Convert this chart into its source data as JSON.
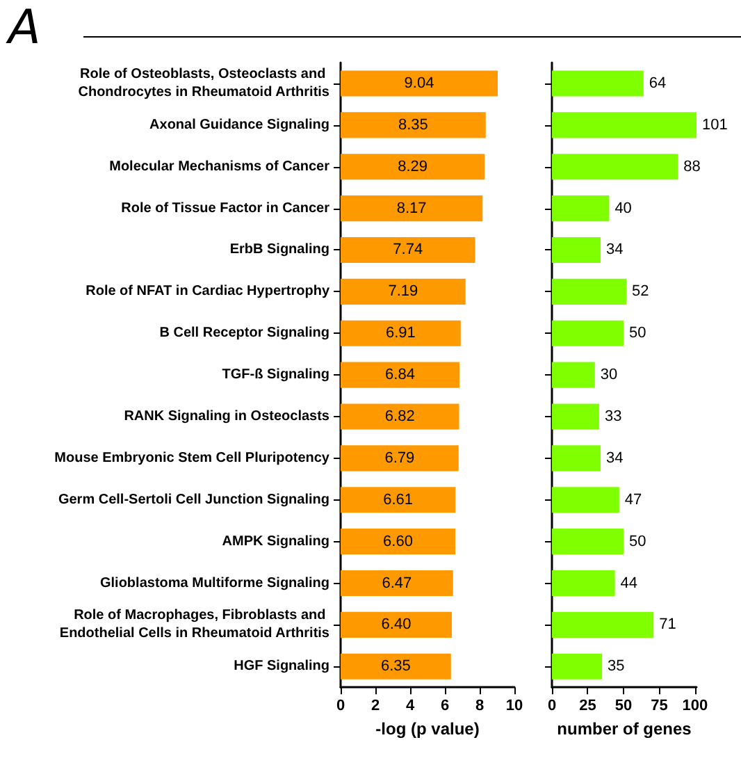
{
  "chart_data": [
    {
      "type": "bar",
      "orientation": "horizontal",
      "annotations": [
        "A"
      ],
      "xlabel": "-log (p value)",
      "categories": [
        "Role of Osteoblasts, Osteoclasts and Chondrocytes in Rheumatoid Arthritis",
        "Axonal Guidance Signaling",
        "Molecular Mechanisms of Cancer",
        "Role of Tissue Factor in Cancer",
        "ErbB Signaling",
        "Role of NFAT in Cardiac Hypertrophy",
        "B Cell Receptor Signaling",
        "TGF-ß Signaling",
        "RANK Signaling in Osteoclasts",
        "Mouse Embryonic Stem Cell Pluripotency",
        "Germ Cell-Sertoli Cell Junction Signaling",
        "AMPK Signaling",
        "Glioblastoma Multiforme Signaling",
        "Role of Macrophages, Fibroblasts and Endothelial Cells in Rheumatoid Arthritis",
        "HGF Signaling"
      ],
      "values": [
        9.04,
        8.35,
        8.29,
        8.17,
        7.74,
        7.19,
        6.91,
        6.84,
        6.82,
        6.79,
        6.61,
        6.6,
        6.47,
        6.4,
        6.35
      ],
      "value_labels": [
        "9.04",
        "8.35",
        "8.29",
        "8.17",
        "7.74",
        "7.19",
        "6.91",
        "6.84",
        "6.82",
        "6.79",
        "6.61",
        "6.60",
        "6.47",
        "6.40",
        "6.35"
      ],
      "color": "#ff9900",
      "xlim": [
        0,
        10
      ],
      "xticks": [
        0,
        2,
        4,
        6,
        8,
        10
      ],
      "grid": false
    },
    {
      "type": "bar",
      "orientation": "horizontal",
      "xlabel": "number of genes",
      "categories": [
        null,
        null,
        null,
        null,
        null,
        null,
        null,
        null,
        null,
        null,
        null,
        null,
        null,
        null,
        null
      ],
      "values": [
        64,
        101,
        88,
        40,
        34,
        52,
        50,
        30,
        33,
        34,
        47,
        50,
        44,
        71,
        35
      ],
      "data_labels": true,
      "tick_labels": "x",
      "color": "#80ff00",
      "xlim": [
        0,
        101
      ],
      "xticks": [
        0,
        25,
        50,
        75,
        100
      ],
      "grid": false
    }
  ]
}
